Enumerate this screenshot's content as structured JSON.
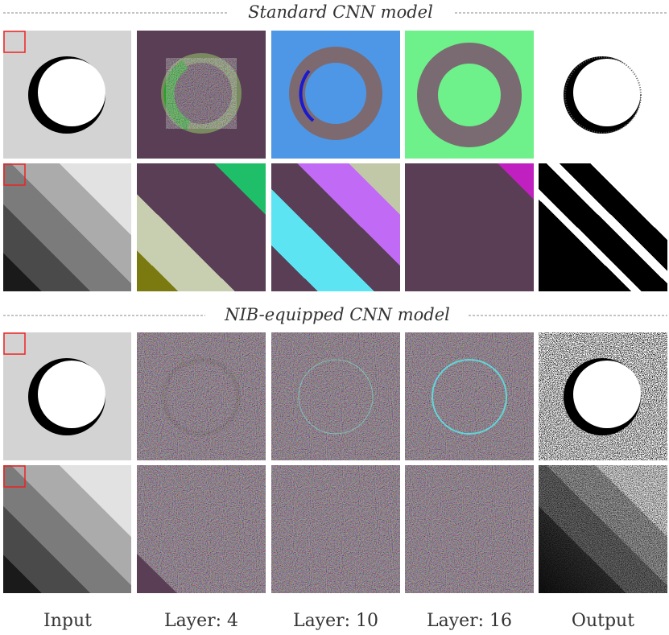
{
  "sections": [
    {
      "title": "Standard CNN model"
    },
    {
      "title": "NIB-equipped CNN model"
    }
  ],
  "columns": [
    "Input",
    "Layer: 4",
    "Layer: 10",
    "Layer: 16",
    "Output"
  ]
}
